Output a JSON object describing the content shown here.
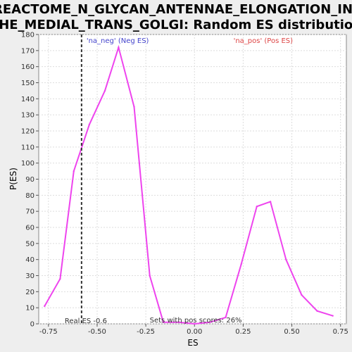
{
  "chart_data": {
    "type": "line",
    "title": "REACTOME_N_GLYCAN_ANTENNAE_ELONGATION_IN_THE_MEDIAL_TRANS_GOLGI: Random ES distribution",
    "title_lines": [
      "REACTOME_N_GLYCAN_ANTENNAE_ELONGATION_IN_",
      "THE_MEDIAL_TRANS_GOLGI: Random ES distribution"
    ],
    "xlabel": "ES",
    "ylabel": "P(ES)",
    "xlim": [
      -0.8,
      0.78
    ],
    "ylim": [
      0,
      180
    ],
    "xticks": [
      -0.75,
      -0.5,
      -0.25,
      0.0,
      0.25,
      0.5,
      0.75
    ],
    "xtick_labels": [
      "-0.75",
      "-0.50",
      "-0.25",
      "0.00",
      "0.25",
      "0.50",
      "0.75"
    ],
    "yticks": [
      0,
      10,
      20,
      30,
      40,
      50,
      60,
      70,
      80,
      90,
      100,
      110,
      120,
      130,
      140,
      150,
      160,
      170,
      180
    ],
    "grid": true,
    "series": [
      {
        "color": "#ee44ee",
        "x": [
          -0.77,
          -0.69,
          -0.62,
          -0.54,
          -0.46,
          -0.39,
          -0.31,
          -0.23,
          -0.16,
          -0.08,
          0.0,
          0.08,
          0.16,
          0.24,
          0.32,
          0.39,
          0.47,
          0.55,
          0.63,
          0.71
        ],
        "y": [
          11,
          28,
          95,
          124,
          145,
          172,
          135,
          30,
          1,
          1,
          0,
          1,
          4,
          37,
          73,
          76,
          40,
          18,
          8,
          5
        ]
      }
    ],
    "reference_line": {
      "x": -0.58,
      "label": "Real ES -0.6",
      "color": "#333333",
      "style": "dashed"
    },
    "annotations": [
      {
        "text": "'na_neg' (Neg ES)",
        "color": "#4444cc"
      },
      {
        "text": "'na_pos' (Pos ES)",
        "color": "#dd4444"
      },
      {
        "text": "Sets with pos scores: 26%",
        "color": "#333333"
      }
    ],
    "colors": {
      "line": "#ee44ee",
      "grid": "#dddddd",
      "plot_bg": "#ffffff",
      "page_bg": "#eeeeee"
    }
  }
}
